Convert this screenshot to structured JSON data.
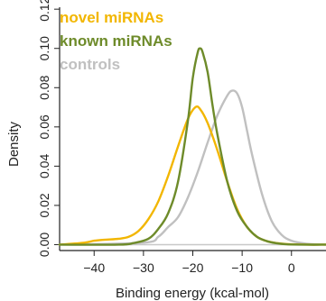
{
  "chart_data": {
    "type": "line",
    "xlabel": "Binding energy (kcal-mol)",
    "ylabel": "Density",
    "xlim": [
      -47,
      7
    ],
    "ylim": [
      -0.003,
      0.121
    ],
    "x_ticks": [
      -40,
      -30,
      -20,
      -10,
      0
    ],
    "y_ticks": [
      0.0,
      0.02,
      0.04,
      0.06,
      0.08,
      0.1,
      0.12
    ],
    "x_tick_labels": [
      "−40",
      "−30",
      "−20",
      "−10",
      "0"
    ],
    "y_tick_labels": [
      "0.00",
      "0.02",
      "0.04",
      "0.06",
      "0.08",
      "0.10",
      "0.12"
    ],
    "grid": false,
    "legend_position": "top-left",
    "series": [
      {
        "name": "controls",
        "color": "#c0c0c0",
        "x": [
          -47,
          -30,
          -27,
          -25,
          -23,
          -21,
          -19,
          -17,
          -15,
          -13,
          -12,
          -11,
          -10,
          -9,
          -8,
          -6,
          -4,
          -2,
          0,
          3,
          7
        ],
        "y": [
          0,
          0.001,
          0.004,
          0.009,
          0.014,
          0.024,
          0.037,
          0.052,
          0.066,
          0.076,
          0.0785,
          0.077,
          0.07,
          0.058,
          0.046,
          0.026,
          0.012,
          0.005,
          0.002,
          0.0005,
          0
        ]
      },
      {
        "name": "novel miRNAs",
        "color": "#f2b600",
        "x": [
          -47,
          -42,
          -40,
          -38,
          -35,
          -33,
          -31,
          -29,
          -27,
          -25,
          -23,
          -21,
          -19.5,
          -18.5,
          -17,
          -15,
          -13,
          -11,
          -9,
          -7,
          -5,
          -3,
          -1,
          3,
          7
        ],
        "y": [
          0,
          0.001,
          0.002,
          0.0025,
          0.003,
          0.004,
          0.007,
          0.013,
          0.022,
          0.035,
          0.05,
          0.064,
          0.07,
          0.069,
          0.062,
          0.048,
          0.032,
          0.018,
          0.009,
          0.004,
          0.0018,
          0.0008,
          0.0003,
          0,
          0
        ]
      },
      {
        "name": "known miRNAs",
        "color": "#6e8b2a",
        "x": [
          -47,
          -35,
          -32,
          -29,
          -27,
          -25,
          -23,
          -21,
          -20,
          -19,
          -18.5,
          -18,
          -17,
          -16,
          -15,
          -13,
          -11,
          -9,
          -7,
          -5,
          -3,
          -1,
          3,
          7
        ],
        "y": [
          0,
          0,
          0.0008,
          0.003,
          0.008,
          0.016,
          0.032,
          0.063,
          0.085,
          0.098,
          0.1,
          0.098,
          0.088,
          0.071,
          0.056,
          0.032,
          0.017,
          0.009,
          0.004,
          0.0018,
          0.0007,
          0.0002,
          0,
          0
        ]
      }
    ],
    "legend_entries": [
      {
        "label": "novel miRNAs",
        "color": "#f2b600"
      },
      {
        "label": "known miRNAs",
        "color": "#6e8b2a"
      },
      {
        "label": "controls",
        "color": "#c0c0c0"
      }
    ]
  }
}
